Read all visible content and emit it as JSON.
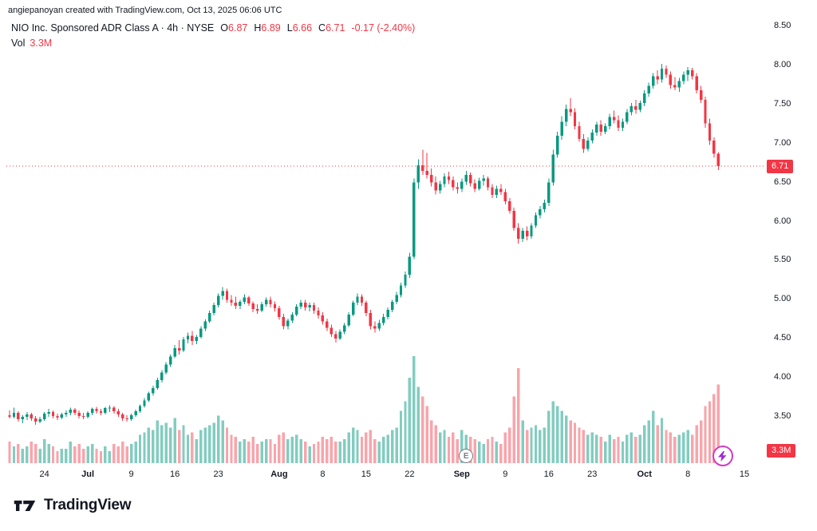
{
  "attribution": "angiepanoyan created with TradingView.com, Oct 13, 2025 06:06 UTC",
  "header": {
    "title": "NIO Inc. Sponsored ADR Class A · 4h · NYSE",
    "ohlc": [
      {
        "label": "O",
        "value": "6.87"
      },
      {
        "label": "H",
        "value": "6.89"
      },
      {
        "label": "L",
        "value": "6.66"
      },
      {
        "label": "C",
        "value": "6.71"
      }
    ],
    "change": "-0.17 (-2.40%)",
    "vol_label": "Vol",
    "vol_value": "3.3M"
  },
  "last_price": {
    "value": 6.71,
    "display": "6.71"
  },
  "volume_badge": "3.3M",
  "footer": {
    "brand": "TradingView"
  },
  "markers": {
    "earnings": {
      "label": "E",
      "bar": 105
    },
    "boost": {
      "bar": 164
    }
  },
  "chart_data": {
    "type": "candlestick+volume",
    "title": "NIO Inc. Sponsored ADR Class A",
    "symbol": "NIO",
    "exchange": "NYSE",
    "interval": "4h",
    "last_bar": {
      "open": 6.87,
      "high": 6.89,
      "low": 6.66,
      "close": 6.71,
      "volume_m": 3.3,
      "change": "-0.17 (-2.40%)"
    },
    "ylim": [
      3.3,
      8.6
    ],
    "volume_max_m": 4.6,
    "grid": false,
    "price_tick_labels": [
      "8.50",
      "8.00",
      "7.50",
      "7.00",
      "6.50",
      "6.00",
      "5.50",
      "5.00",
      "4.50",
      "4.00",
      "3.50"
    ],
    "time_ticks": [
      {
        "label": "24",
        "bar": 8,
        "major": false
      },
      {
        "label": "Jul",
        "bar": 18,
        "major": true
      },
      {
        "label": "9",
        "bar": 28,
        "major": false
      },
      {
        "label": "16",
        "bar": 38,
        "major": false
      },
      {
        "label": "23",
        "bar": 48,
        "major": false
      },
      {
        "label": "Aug",
        "bar": 62,
        "major": true
      },
      {
        "label": "8",
        "bar": 72,
        "major": false
      },
      {
        "label": "15",
        "bar": 82,
        "major": false
      },
      {
        "label": "22",
        "bar": 92,
        "major": false
      },
      {
        "label": "Sep",
        "bar": 104,
        "major": true
      },
      {
        "label": "9",
        "bar": 114,
        "major": false
      },
      {
        "label": "16",
        "bar": 124,
        "major": false
      },
      {
        "label": "23",
        "bar": 134,
        "major": false
      },
      {
        "label": "Oct",
        "bar": 146,
        "major": true
      },
      {
        "label": "8",
        "bar": 156,
        "major": false
      },
      {
        "label": "15",
        "bar": 169,
        "major": false
      }
    ],
    "colors": {
      "up": "#089981",
      "down": "#f23645",
      "vol_up": "rgba(8,153,129,0.5)",
      "vol_down": "rgba(242,54,69,0.45)",
      "last_price_line": "#f23645",
      "text": "#131722",
      "muted": "#787b86",
      "badge": "#f23645",
      "marker_purple": "#cf3cc4"
    },
    "candles_format": [
      "open",
      "high",
      "low",
      "close",
      "volume_m"
    ],
    "candles": [
      [
        3.52,
        3.58,
        3.48,
        3.5,
        0.9
      ],
      [
        3.5,
        3.62,
        3.48,
        3.55,
        0.7
      ],
      [
        3.55,
        3.57,
        3.44,
        3.47,
        0.8
      ],
      [
        3.47,
        3.52,
        3.42,
        3.5,
        0.6
      ],
      [
        3.5,
        3.56,
        3.46,
        3.53,
        0.7
      ],
      [
        3.53,
        3.55,
        3.45,
        3.48,
        0.9
      ],
      [
        3.48,
        3.51,
        3.4,
        3.44,
        0.8
      ],
      [
        3.44,
        3.5,
        3.42,
        3.47,
        0.6
      ],
      [
        3.47,
        3.56,
        3.45,
        3.54,
        1.0
      ],
      [
        3.54,
        3.6,
        3.5,
        3.56,
        0.8
      ],
      [
        3.56,
        3.58,
        3.48,
        3.51,
        0.7
      ],
      [
        3.51,
        3.54,
        3.46,
        3.49,
        0.5
      ],
      [
        3.49,
        3.55,
        3.47,
        3.53,
        0.6
      ],
      [
        3.53,
        3.58,
        3.5,
        3.55,
        0.6
      ],
      [
        3.55,
        3.62,
        3.52,
        3.59,
        0.9
      ],
      [
        3.59,
        3.61,
        3.52,
        3.55,
        0.7
      ],
      [
        3.55,
        3.58,
        3.48,
        3.51,
        0.8
      ],
      [
        3.51,
        3.55,
        3.47,
        3.5,
        0.6
      ],
      [
        3.5,
        3.57,
        3.48,
        3.55,
        0.7
      ],
      [
        3.55,
        3.62,
        3.52,
        3.6,
        0.8
      ],
      [
        3.6,
        3.63,
        3.54,
        3.57,
        0.6
      ],
      [
        3.57,
        3.6,
        3.52,
        3.55,
        0.5
      ],
      [
        3.55,
        3.63,
        3.53,
        3.61,
        0.7
      ],
      [
        3.61,
        3.65,
        3.56,
        3.62,
        0.5
      ],
      [
        3.62,
        3.64,
        3.54,
        3.57,
        0.8
      ],
      [
        3.57,
        3.6,
        3.5,
        3.53,
        0.7
      ],
      [
        3.53,
        3.55,
        3.45,
        3.48,
        0.9
      ],
      [
        3.48,
        3.52,
        3.44,
        3.47,
        0.7
      ],
      [
        3.47,
        3.54,
        3.45,
        3.52,
        0.8
      ],
      [
        3.52,
        3.59,
        3.5,
        3.57,
        0.9
      ],
      [
        3.57,
        3.66,
        3.55,
        3.64,
        1.2
      ],
      [
        3.64,
        3.74,
        3.62,
        3.71,
        1.3
      ],
      [
        3.71,
        3.82,
        3.69,
        3.8,
        1.5
      ],
      [
        3.8,
        3.9,
        3.77,
        3.87,
        1.4
      ],
      [
        3.87,
        4.0,
        3.85,
        3.97,
        1.8
      ],
      [
        3.97,
        4.1,
        3.94,
        4.07,
        1.6
      ],
      [
        4.07,
        4.2,
        4.04,
        4.17,
        1.7
      ],
      [
        4.17,
        4.3,
        4.14,
        4.27,
        1.5
      ],
      [
        4.27,
        4.42,
        4.25,
        4.38,
        1.9
      ],
      [
        4.38,
        4.48,
        4.3,
        4.35,
        1.4
      ],
      [
        4.35,
        4.52,
        4.33,
        4.49,
        1.6
      ],
      [
        4.49,
        4.58,
        4.44,
        4.54,
        1.2
      ],
      [
        4.54,
        4.6,
        4.42,
        4.47,
        1.3
      ],
      [
        4.47,
        4.55,
        4.43,
        4.52,
        1.0
      ],
      [
        4.52,
        4.66,
        4.5,
        4.63,
        1.4
      ],
      [
        4.63,
        4.75,
        4.6,
        4.72,
        1.5
      ],
      [
        4.72,
        4.86,
        4.7,
        4.83,
        1.6
      ],
      [
        4.83,
        4.96,
        4.8,
        4.93,
        1.7
      ],
      [
        4.93,
        5.08,
        4.9,
        5.05,
        2.0
      ],
      [
        5.05,
        5.16,
        5.0,
        5.11,
        1.8
      ],
      [
        5.11,
        5.14,
        4.96,
        5.0,
        1.5
      ],
      [
        5.0,
        5.06,
        4.92,
        4.96,
        1.2
      ],
      [
        4.96,
        5.04,
        4.88,
        4.92,
        1.1
      ],
      [
        4.92,
        5.0,
        4.88,
        4.97,
        0.9
      ],
      [
        4.97,
        5.07,
        4.94,
        5.03,
        1.0
      ],
      [
        5.03,
        5.05,
        4.92,
        4.95,
        0.9
      ],
      [
        4.95,
        4.98,
        4.84,
        4.88,
        1.1
      ],
      [
        4.88,
        4.94,
        4.82,
        4.86,
        0.8
      ],
      [
        4.86,
        4.97,
        4.84,
        4.94,
        0.9
      ],
      [
        4.94,
        5.03,
        4.91,
        5.0,
        1.0
      ],
      [
        5.0,
        5.04,
        4.9,
        4.94,
        1.0
      ],
      [
        4.94,
        4.98,
        4.85,
        4.89,
        0.8
      ],
      [
        4.89,
        4.92,
        4.74,
        4.78,
        1.2
      ],
      [
        4.78,
        4.82,
        4.62,
        4.66,
        1.3
      ],
      [
        4.66,
        4.76,
        4.62,
        4.73,
        1.0
      ],
      [
        4.73,
        4.84,
        4.7,
        4.81,
        1.1
      ],
      [
        4.81,
        4.94,
        4.79,
        4.91,
        1.2
      ],
      [
        4.91,
        5.0,
        4.88,
        4.96,
        1.0
      ],
      [
        4.96,
        5.0,
        4.86,
        4.9,
        0.9
      ],
      [
        4.9,
        4.96,
        4.85,
        4.93,
        0.7
      ],
      [
        4.93,
        4.96,
        4.82,
        4.86,
        0.8
      ],
      [
        4.86,
        4.9,
        4.76,
        4.8,
        0.9
      ],
      [
        4.8,
        4.84,
        4.68,
        4.72,
        1.1
      ],
      [
        4.72,
        4.76,
        4.6,
        4.64,
        1.0
      ],
      [
        4.64,
        4.68,
        4.52,
        4.56,
        1.1
      ],
      [
        4.56,
        4.6,
        4.45,
        4.5,
        0.9
      ],
      [
        4.5,
        4.62,
        4.48,
        4.59,
        0.9
      ],
      [
        4.59,
        4.7,
        4.56,
        4.67,
        1.0
      ],
      [
        4.67,
        4.84,
        4.65,
        4.81,
        1.3
      ],
      [
        4.81,
        4.99,
        4.79,
        4.96,
        1.5
      ],
      [
        4.96,
        5.08,
        4.93,
        5.04,
        1.4
      ],
      [
        5.04,
        5.07,
        4.92,
        4.96,
        1.1
      ],
      [
        4.96,
        4.99,
        4.79,
        4.83,
        1.3
      ],
      [
        4.83,
        4.87,
        4.62,
        4.66,
        1.4
      ],
      [
        4.66,
        4.72,
        4.58,
        4.63,
        1.0
      ],
      [
        4.63,
        4.74,
        4.6,
        4.7,
        0.9
      ],
      [
        4.7,
        4.82,
        4.67,
        4.78,
        1.1
      ],
      [
        4.78,
        4.9,
        4.75,
        4.87,
        1.2
      ],
      [
        4.87,
        5.0,
        4.84,
        4.97,
        1.4
      ],
      [
        4.97,
        5.1,
        4.94,
        5.06,
        1.5
      ],
      [
        5.06,
        5.22,
        5.03,
        5.18,
        2.2
      ],
      [
        5.18,
        5.36,
        5.15,
        5.32,
        2.6
      ],
      [
        5.32,
        5.6,
        5.28,
        5.55,
        3.6
      ],
      [
        5.55,
        6.55,
        5.52,
        6.5,
        4.5
      ],
      [
        6.5,
        6.8,
        6.42,
        6.72,
        3.2
      ],
      [
        6.72,
        6.92,
        6.6,
        6.65,
        2.8
      ],
      [
        6.65,
        6.88,
        6.55,
        6.6,
        2.4
      ],
      [
        6.6,
        6.68,
        6.45,
        6.5,
        1.8
      ],
      [
        6.5,
        6.58,
        6.35,
        6.4,
        1.6
      ],
      [
        6.4,
        6.52,
        6.36,
        6.48,
        1.3
      ],
      [
        6.48,
        6.62,
        6.44,
        6.58,
        1.4
      ],
      [
        6.58,
        6.64,
        6.48,
        6.53,
        1.1
      ],
      [
        6.53,
        6.58,
        6.4,
        6.44,
        1.3
      ],
      [
        6.44,
        6.5,
        6.36,
        6.42,
        1.0
      ],
      [
        6.42,
        6.55,
        6.38,
        6.51,
        1.4
      ],
      [
        6.51,
        6.65,
        6.47,
        6.6,
        1.2
      ],
      [
        6.6,
        6.63,
        6.45,
        6.49,
        1.1
      ],
      [
        6.49,
        6.54,
        6.38,
        6.42,
        1.0
      ],
      [
        6.42,
        6.56,
        6.4,
        6.52,
        0.9
      ],
      [
        6.52,
        6.6,
        6.46,
        6.55,
        0.8
      ],
      [
        6.55,
        6.58,
        6.4,
        6.44,
        1.0
      ],
      [
        6.44,
        6.48,
        6.3,
        6.34,
        1.1
      ],
      [
        6.34,
        6.46,
        6.3,
        6.42,
        0.9
      ],
      [
        6.42,
        6.48,
        6.34,
        6.38,
        0.8
      ],
      [
        6.38,
        6.42,
        6.22,
        6.26,
        1.3
      ],
      [
        6.26,
        6.3,
        6.1,
        6.14,
        1.5
      ],
      [
        6.14,
        6.18,
        5.88,
        5.92,
        2.8
      ],
      [
        5.92,
        5.98,
        5.72,
        5.78,
        4.0
      ],
      [
        5.78,
        5.92,
        5.74,
        5.88,
        1.8
      ],
      [
        5.88,
        5.94,
        5.76,
        5.81,
        1.4
      ],
      [
        5.81,
        5.98,
        5.78,
        5.95,
        1.5
      ],
      [
        5.95,
        6.12,
        5.92,
        6.08,
        1.6
      ],
      [
        6.08,
        6.2,
        6.04,
        6.16,
        1.4
      ],
      [
        6.16,
        6.28,
        6.12,
        6.24,
        1.5
      ],
      [
        6.24,
        6.55,
        6.2,
        6.5,
        2.2
      ],
      [
        6.5,
        6.92,
        6.46,
        6.86,
        2.6
      ],
      [
        6.86,
        7.15,
        6.82,
        7.1,
        2.4
      ],
      [
        7.1,
        7.35,
        7.05,
        7.28,
        2.2
      ],
      [
        7.28,
        7.5,
        7.22,
        7.44,
        2.0
      ],
      [
        7.44,
        7.58,
        7.35,
        7.4,
        1.8
      ],
      [
        7.4,
        7.45,
        7.18,
        7.22,
        1.7
      ],
      [
        7.22,
        7.28,
        7.02,
        7.06,
        1.5
      ],
      [
        7.06,
        7.12,
        6.88,
        6.93,
        1.4
      ],
      [
        6.93,
        7.08,
        6.9,
        7.04,
        1.2
      ],
      [
        7.04,
        7.18,
        7.0,
        7.14,
        1.3
      ],
      [
        7.14,
        7.28,
        7.1,
        7.24,
        1.2
      ],
      [
        7.24,
        7.3,
        7.1,
        7.15,
        1.1
      ],
      [
        7.15,
        7.26,
        7.12,
        7.22,
        0.9
      ],
      [
        7.22,
        7.38,
        7.18,
        7.34,
        1.2
      ],
      [
        7.34,
        7.42,
        7.26,
        7.3,
        1.0
      ],
      [
        7.3,
        7.36,
        7.16,
        7.2,
        1.1
      ],
      [
        7.2,
        7.32,
        7.16,
        7.28,
        0.9
      ],
      [
        7.28,
        7.44,
        7.25,
        7.4,
        1.2
      ],
      [
        7.4,
        7.52,
        7.36,
        7.48,
        1.3
      ],
      [
        7.48,
        7.56,
        7.38,
        7.43,
        1.1
      ],
      [
        7.43,
        7.55,
        7.4,
        7.52,
        1.2
      ],
      [
        7.52,
        7.68,
        7.48,
        7.64,
        1.6
      ],
      [
        7.64,
        7.78,
        7.6,
        7.74,
        1.8
      ],
      [
        7.74,
        7.9,
        7.7,
        7.86,
        2.2
      ],
      [
        7.86,
        7.94,
        7.76,
        7.82,
        1.6
      ],
      [
        7.82,
        8.02,
        7.78,
        7.96,
        1.9
      ],
      [
        7.96,
        8.0,
        7.84,
        7.88,
        1.4
      ],
      [
        7.88,
        7.92,
        7.7,
        7.75,
        1.3
      ],
      [
        7.75,
        7.85,
        7.68,
        7.72,
        1.1
      ],
      [
        7.72,
        7.84,
        7.66,
        7.8,
        1.2
      ],
      [
        7.8,
        7.92,
        7.76,
        7.88,
        1.3
      ],
      [
        7.88,
        7.98,
        7.8,
        7.94,
        1.4
      ],
      [
        7.94,
        7.97,
        7.82,
        7.86,
        1.2
      ],
      [
        7.86,
        7.9,
        7.64,
        7.68,
        1.6
      ],
      [
        7.68,
        7.74,
        7.52,
        7.56,
        1.8
      ],
      [
        7.56,
        7.6,
        7.2,
        7.26,
        2.4
      ],
      [
        7.26,
        7.32,
        6.98,
        7.04,
        2.6
      ],
      [
        7.04,
        7.08,
        6.82,
        6.87,
        2.9
      ],
      [
        6.87,
        6.89,
        6.66,
        6.71,
        3.3
      ]
    ]
  }
}
